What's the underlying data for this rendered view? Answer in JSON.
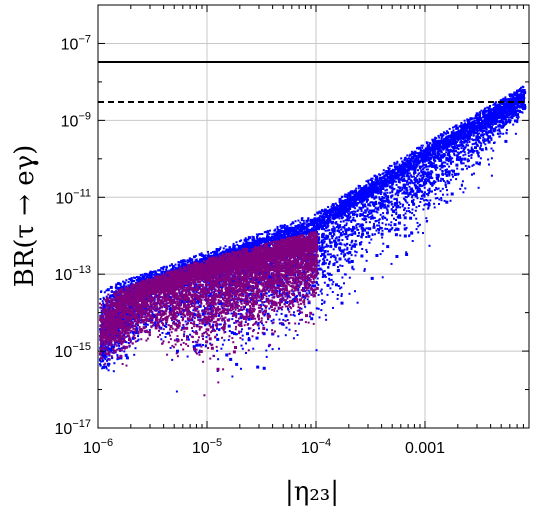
{
  "chart_data": {
    "type": "scatter",
    "title": "",
    "xlabel": "|η₂₃|",
    "ylabel": "BR(τ → eγ)",
    "xscale": "log",
    "yscale": "log",
    "xlim": [
      1e-06,
      0.009
    ],
    "ylim": [
      1e-17,
      1e-06
    ],
    "grid": true,
    "x_ticks": [
      {
        "value": 1e-06,
        "base": "10",
        "exp": "−6"
      },
      {
        "value": 1e-05,
        "base": "10",
        "exp": "−5"
      },
      {
        "value": 0.0001,
        "base": "10",
        "exp": "−4"
      },
      {
        "value": 0.001,
        "plain": "0.001"
      }
    ],
    "y_ticks": [
      {
        "value": 1e-07,
        "base": "10",
        "exp": "−7"
      },
      {
        "value": 1e-09,
        "base": "10",
        "exp": "−9"
      },
      {
        "value": 1e-11,
        "base": "10",
        "exp": "−11"
      },
      {
        "value": 1e-13,
        "base": "10",
        "exp": "−13"
      },
      {
        "value": 1e-15,
        "base": "10",
        "exp": "−15"
      },
      {
        "value": 1e-17,
        "base": "10",
        "exp": "−17"
      }
    ],
    "reference_lines": [
      {
        "style": "solid",
        "y": 3.3e-08
      },
      {
        "style": "dashed",
        "y": 3e-09
      }
    ],
    "series": [
      {
        "color": "#0000ff",
        "description_points": [
          [
            1e-06,
            2e-15
          ],
          [
            3e-06,
            1e-13
          ],
          [
            1e-05,
            2e-13
          ],
          [
            3e-05,
            3e-13
          ],
          [
            0.0001,
            1e-12
          ],
          [
            0.0003,
            2e-11
          ],
          [
            0.001,
            1e-10
          ],
          [
            0.003,
            8e-10
          ],
          [
            0.008,
            5e-09
          ]
        ],
        "envelope_upper": [
          [
            1e-06,
            3e-14
          ],
          [
            1e-05,
            3e-13
          ],
          [
            0.0001,
            3e-12
          ],
          [
            0.001,
            2e-10
          ],
          [
            0.008,
            6e-09
          ]
        ],
        "envelope_lower": [
          [
            1e-06,
            5e-16
          ],
          [
            1e-05,
            3e-17
          ],
          [
            0.0001,
            3e-16
          ],
          [
            0.001,
            2e-13
          ],
          [
            0.008,
            5e-10
          ]
        ]
      },
      {
        "color": "#800080",
        "description_points": [
          [
            1e-06,
            3e-15
          ],
          [
            3e-06,
            5e-14
          ],
          [
            1e-05,
            1e-13
          ],
          [
            3e-05,
            2e-13
          ],
          [
            0.0001,
            5e-13
          ]
        ],
        "envelope_upper": [
          [
            1e-06,
            2e-14
          ],
          [
            1e-05,
            2e-13
          ],
          [
            0.0001,
            1e-12
          ]
        ],
        "envelope_lower": [
          [
            1e-06,
            8e-16
          ],
          [
            1e-05,
            6e-17
          ],
          [
            0.0001,
            4e-15
          ]
        ]
      }
    ]
  }
}
